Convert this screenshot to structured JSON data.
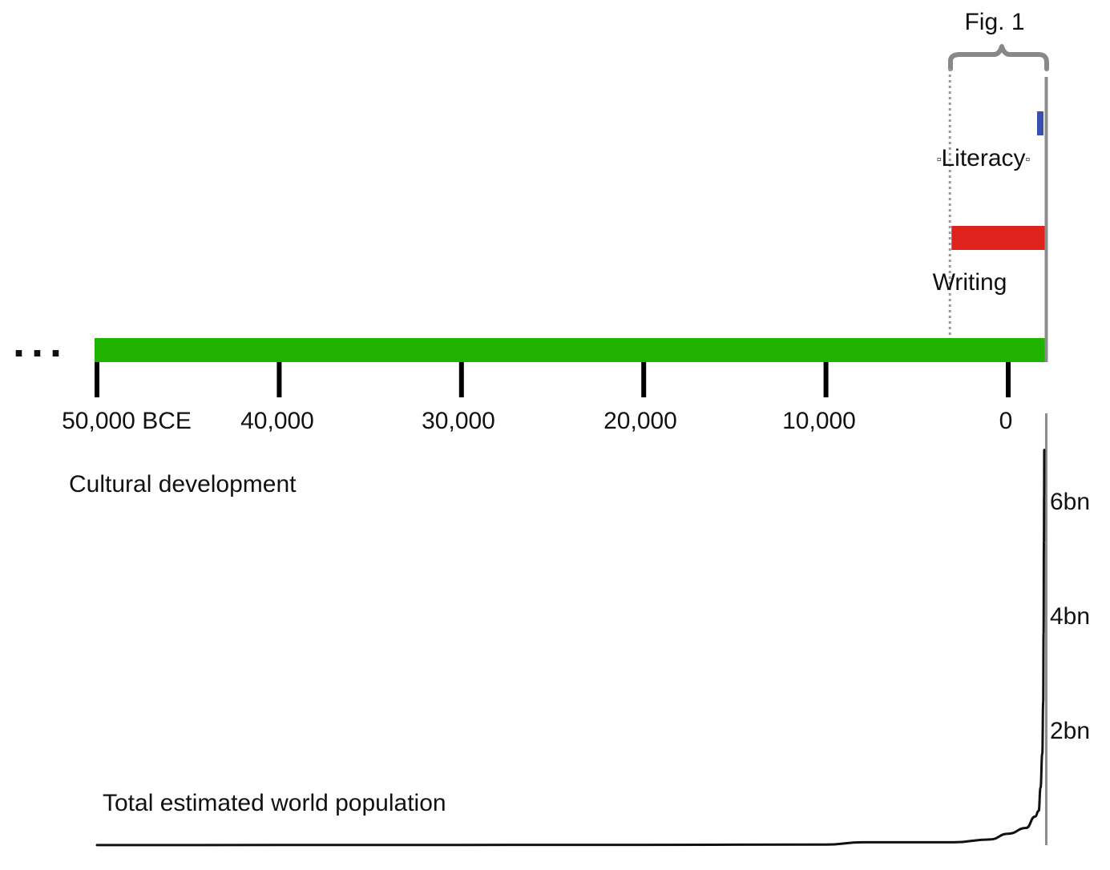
{
  "figure_label": "Fig. 1",
  "bars": [
    {
      "id": "cultural-development",
      "label": "Cultural development",
      "start_year": -50000,
      "end_year": 2000,
      "color": "#1fb300"
    },
    {
      "id": "writing",
      "label": "Writing",
      "start_year": -3200,
      "end_year": 2000,
      "color": "#e0221c"
    },
    {
      "id": "literacy",
      "label": "Literacy",
      "start_year": 1800,
      "end_year": 2000,
      "color": "#3a4fb0"
    }
  ],
  "literacy_marks": [
    "▫",
    "▫"
  ],
  "continuation_marker": "...",
  "bracket": {
    "start_year": -3200,
    "end_year": 2000,
    "color": "#888888"
  },
  "time_axis": {
    "ticks": [
      {
        "year": -50000,
        "label": "50,000 BCE"
      },
      {
        "year": -40000,
        "label": "40,000"
      },
      {
        "year": -30000,
        "label": "30,000"
      },
      {
        "year": -20000,
        "label": "20,000"
      },
      {
        "year": -10000,
        "label": "10,000"
      },
      {
        "year": 0,
        "label": "0"
      }
    ]
  },
  "population_axis": {
    "ticks": [
      {
        "value": 2,
        "label": "2bn"
      },
      {
        "value": 4,
        "label": "4bn"
      },
      {
        "value": 6,
        "label": "6bn"
      }
    ]
  },
  "population_curve": {
    "label": "Total estimated world population",
    "points": [
      [
        -50000,
        0.002
      ],
      [
        -40000,
        0.003
      ],
      [
        -30000,
        0.004
      ],
      [
        -20000,
        0.006
      ],
      [
        -10000,
        0.01
      ],
      [
        -8000,
        0.05
      ],
      [
        -5000,
        0.05
      ],
      [
        -3000,
        0.05
      ],
      [
        -1000,
        0.1
      ],
      [
        0,
        0.2
      ],
      [
        1000,
        0.3
      ],
      [
        1500,
        0.5
      ],
      [
        1700,
        0.6
      ],
      [
        1800,
        1.0
      ],
      [
        1900,
        1.6
      ],
      [
        1950,
        2.5
      ],
      [
        1970,
        3.7
      ],
      [
        1990,
        5.3
      ],
      [
        2000,
        6.1
      ],
      [
        2010,
        6.9
      ]
    ]
  }
}
